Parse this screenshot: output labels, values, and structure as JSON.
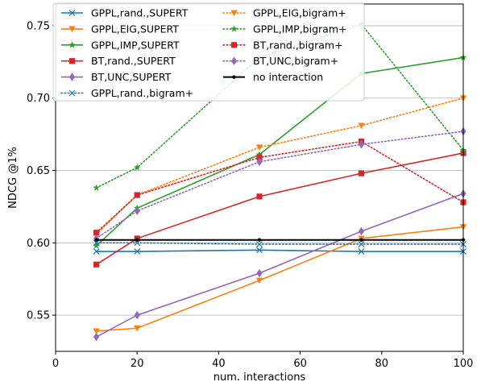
{
  "chart_data": {
    "type": "line",
    "title": "",
    "xlabel": "num. interactions",
    "ylabel": "NDCG @1%",
    "xlim": [
      0,
      100
    ],
    "ylim": [
      0.525,
      0.765
    ],
    "x_ticks": [
      0,
      20,
      40,
      60,
      80,
      100
    ],
    "y_ticks": [
      0.55,
      0.6,
      0.65,
      0.7,
      0.75
    ],
    "x_tick_labels": [
      "0",
      "20",
      "40",
      "60",
      "80",
      "100"
    ],
    "y_tick_labels": [
      "0.55",
      "0.60",
      "0.65",
      "0.70",
      "0.75"
    ],
    "grid": "horizontal",
    "legend_position": "top-left",
    "x": [
      10,
      20,
      50,
      75,
      100
    ],
    "series": [
      {
        "name": "GPPL,rand.,SUPERT",
        "color": "#1f77b4",
        "linestyle": "solid",
        "marker": "x",
        "values": [
          0.594,
          0.594,
          0.595,
          0.594,
          0.594
        ]
      },
      {
        "name": "GPPL,EIG,SUPERT",
        "color": "#ff7f0e",
        "linestyle": "solid",
        "marker": "triangle-down",
        "values": [
          0.539,
          0.541,
          0.574,
          0.603,
          0.611
        ]
      },
      {
        "name": "GPPL,IMP,SUPERT",
        "color": "#2ca02c",
        "linestyle": "solid",
        "marker": "star",
        "values": [
          0.598,
          0.624,
          0.661,
          0.717,
          0.728
        ]
      },
      {
        "name": "BT,rand.,SUPERT",
        "color": "#d62728",
        "linestyle": "solid",
        "marker": "square",
        "values": [
          0.585,
          0.603,
          0.632,
          0.648,
          0.662
        ]
      },
      {
        "name": "BT,UNC,SUPERT",
        "color": "#9467bd",
        "linestyle": "solid",
        "marker": "diamond",
        "values": [
          0.535,
          0.55,
          0.579,
          0.608,
          0.634
        ]
      },
      {
        "name": "GPPL,rand.,bigram+",
        "color": "#1f77b4",
        "linestyle": "dotted",
        "marker": "x",
        "values": [
          0.6,
          0.6,
          0.599,
          0.599,
          0.599
        ]
      },
      {
        "name": "GPPL,EIG,bigram+",
        "color": "#ff7f0e",
        "linestyle": "dotted",
        "marker": "triangle-down",
        "values": [
          0.606,
          0.633,
          0.666,
          0.681,
          0.7
        ]
      },
      {
        "name": "GPPL,IMP,bigram+",
        "color": "#2ca02c",
        "linestyle": "dotted",
        "marker": "star",
        "values": [
          0.638,
          0.652,
          0.728,
          0.751,
          0.664
        ]
      },
      {
        "name": "BT,rand.,bigram+",
        "color": "#d62728",
        "linestyle": "dotted",
        "marker": "square",
        "values": [
          0.607,
          0.633,
          0.659,
          0.67,
          0.628
        ]
      },
      {
        "name": "BT,UNC,bigram+",
        "color": "#9467bd",
        "linestyle": "dotted",
        "marker": "diamond",
        "values": [
          0.603,
          0.622,
          0.656,
          0.668,
          0.677
        ]
      },
      {
        "name": "no interaction",
        "color": "#000000",
        "linestyle": "solid",
        "marker": "dot",
        "values": [
          0.602,
          0.602,
          0.602,
          0.602,
          0.602
        ]
      }
    ]
  }
}
